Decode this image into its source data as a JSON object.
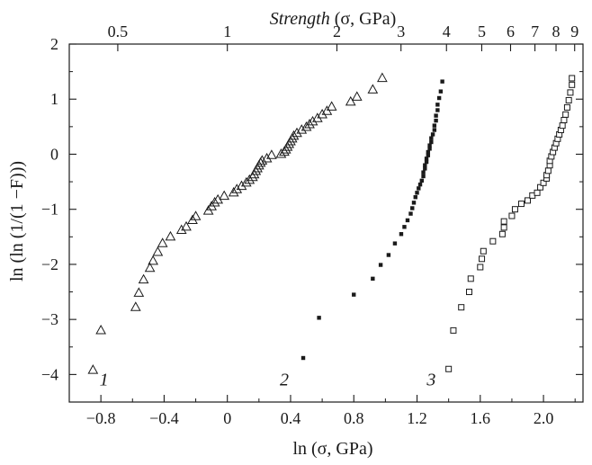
{
  "chart_data": {
    "type": "scatter",
    "title": "",
    "xlabel": "ln (σ, GPa)",
    "ylabel": "ln (ln (1/(1 −F)))",
    "top_xlabel": {
      "italic": "Strength",
      "rest": " (σ, GPa)"
    },
    "xlim": [
      -1.0,
      2.25
    ],
    "ylim": [
      -4.5,
      2.0
    ],
    "x_ticks": [
      "-0.8",
      "-0.4",
      "0",
      "0.4",
      "0.8",
      "1.2",
      "1.6",
      "2.0"
    ],
    "y_ticks": [
      "-4",
      "-3",
      "-2",
      "-1",
      "0",
      "1",
      "2"
    ],
    "top_ticks": [
      {
        "label": "0.5",
        "sigma": 0.5
      },
      {
        "label": "1",
        "sigma": 1
      },
      {
        "label": "2",
        "sigma": 2
      },
      {
        "label": "3",
        "sigma": 3
      },
      {
        "label": "4",
        "sigma": 4
      },
      {
        "label": "5",
        "sigma": 5
      },
      {
        "label": "6",
        "sigma": 6
      },
      {
        "label": "7",
        "sigma": 7
      },
      {
        "label": "8",
        "sigma": 8
      },
      {
        "label": "9",
        "sigma": 9
      }
    ],
    "grid": false,
    "series": [
      {
        "name": "1",
        "marker": "open-triangle",
        "label_at": [
          -0.78,
          -4.08
        ],
        "points": [
          [
            -0.85,
            -3.92
          ],
          [
            -0.8,
            -3.2
          ],
          [
            -0.58,
            -2.78
          ],
          [
            -0.56,
            -2.52
          ],
          [
            -0.53,
            -2.28
          ],
          [
            -0.49,
            -2.07
          ],
          [
            -0.47,
            -1.94
          ],
          [
            -0.44,
            -1.78
          ],
          [
            -0.41,
            -1.62
          ],
          [
            -0.36,
            -1.5
          ],
          [
            -0.29,
            -1.38
          ],
          [
            -0.26,
            -1.32
          ],
          [
            -0.22,
            -1.2
          ],
          [
            -0.2,
            -1.13
          ],
          [
            -0.12,
            -1.03
          ],
          [
            -0.1,
            -0.95
          ],
          [
            -0.08,
            -0.88
          ],
          [
            -0.06,
            -0.83
          ],
          [
            -0.02,
            -0.76
          ],
          [
            0.04,
            -0.7
          ],
          [
            0.06,
            -0.64
          ],
          [
            0.09,
            -0.58
          ],
          [
            0.12,
            -0.52
          ],
          [
            0.14,
            -0.47
          ],
          [
            0.16,
            -0.42
          ],
          [
            0.17,
            -0.37
          ],
          [
            0.18,
            -0.31
          ],
          [
            0.19,
            -0.26
          ],
          [
            0.2,
            -0.21
          ],
          [
            0.21,
            -0.16
          ],
          [
            0.22,
            -0.12
          ],
          [
            0.25,
            -0.08
          ],
          [
            0.28,
            -0.02
          ],
          [
            0.34,
            0.0
          ],
          [
            0.36,
            0.04
          ],
          [
            0.37,
            0.08
          ],
          [
            0.38,
            0.13
          ],
          [
            0.39,
            0.18
          ],
          [
            0.4,
            0.23
          ],
          [
            0.41,
            0.28
          ],
          [
            0.42,
            0.33
          ],
          [
            0.44,
            0.38
          ],
          [
            0.47,
            0.44
          ],
          [
            0.5,
            0.49
          ],
          [
            0.52,
            0.54
          ],
          [
            0.54,
            0.59
          ],
          [
            0.57,
            0.65
          ],
          [
            0.6,
            0.72
          ],
          [
            0.63,
            0.78
          ],
          [
            0.66,
            0.86
          ],
          [
            0.78,
            0.95
          ],
          [
            0.82,
            1.04
          ],
          [
            0.92,
            1.17
          ],
          [
            0.98,
            1.38
          ]
        ]
      },
      {
        "name": "2",
        "marker": "filled-square",
        "label_at": [
          0.36,
          -4.08
        ],
        "points": [
          [
            0.48,
            -3.7
          ],
          [
            0.58,
            -2.97
          ],
          [
            0.8,
            -2.55
          ],
          [
            0.92,
            -2.26
          ],
          [
            0.97,
            -2.01
          ],
          [
            1.02,
            -1.83
          ],
          [
            1.06,
            -1.62
          ],
          [
            1.1,
            -1.45
          ],
          [
            1.12,
            -1.32
          ],
          [
            1.14,
            -1.2
          ],
          [
            1.16,
            -1.08
          ],
          [
            1.17,
            -0.98
          ],
          [
            1.18,
            -0.88
          ],
          [
            1.19,
            -0.78
          ],
          [
            1.2,
            -0.7
          ],
          [
            1.21,
            -0.62
          ],
          [
            1.22,
            -0.55
          ],
          [
            1.23,
            -0.48
          ],
          [
            1.24,
            -0.4
          ],
          [
            1.24,
            -0.33
          ],
          [
            1.25,
            -0.26
          ],
          [
            1.25,
            -0.2
          ],
          [
            1.26,
            -0.14
          ],
          [
            1.26,
            -0.08
          ],
          [
            1.27,
            -0.02
          ],
          [
            1.27,
            0.04
          ],
          [
            1.28,
            0.1
          ],
          [
            1.28,
            0.16
          ],
          [
            1.29,
            0.22
          ],
          [
            1.29,
            0.29
          ],
          [
            1.3,
            0.36
          ],
          [
            1.31,
            0.44
          ],
          [
            1.31,
            0.52
          ],
          [
            1.32,
            0.61
          ],
          [
            1.32,
            0.7
          ],
          [
            1.33,
            0.8
          ],
          [
            1.33,
            0.9
          ],
          [
            1.34,
            1.02
          ],
          [
            1.35,
            1.14
          ],
          [
            1.36,
            1.32
          ]
        ]
      },
      {
        "name": "3",
        "marker": "open-square",
        "label_at": [
          1.29,
          -4.08
        ],
        "points": [
          [
            1.4,
            -3.9
          ],
          [
            1.43,
            -3.2
          ],
          [
            1.48,
            -2.78
          ],
          [
            1.53,
            -2.5
          ],
          [
            1.54,
            -2.26
          ],
          [
            1.6,
            -2.05
          ],
          [
            1.61,
            -1.9
          ],
          [
            1.62,
            -1.76
          ],
          [
            1.68,
            -1.58
          ],
          [
            1.74,
            -1.45
          ],
          [
            1.75,
            -1.33
          ],
          [
            1.75,
            -1.22
          ],
          [
            1.8,
            -1.12
          ],
          [
            1.82,
            -1.0
          ],
          [
            1.86,
            -0.9
          ],
          [
            1.9,
            -0.84
          ],
          [
            1.93,
            -0.75
          ],
          [
            1.96,
            -0.7
          ],
          [
            1.98,
            -0.6
          ],
          [
            2.0,
            -0.52
          ],
          [
            2.02,
            -0.44
          ],
          [
            2.02,
            -0.38
          ],
          [
            2.03,
            -0.3
          ],
          [
            2.04,
            -0.2
          ],
          [
            2.04,
            -0.12
          ],
          [
            2.05,
            -0.04
          ],
          [
            2.06,
            0.04
          ],
          [
            2.07,
            0.12
          ],
          [
            2.08,
            0.2
          ],
          [
            2.09,
            0.28
          ],
          [
            2.1,
            0.36
          ],
          [
            2.11,
            0.44
          ],
          [
            2.12,
            0.52
          ],
          [
            2.13,
            0.62
          ],
          [
            2.14,
            0.72
          ],
          [
            2.15,
            0.85
          ],
          [
            2.16,
            0.98
          ],
          [
            2.17,
            1.12
          ],
          [
            2.18,
            1.26
          ],
          [
            2.18,
            1.38
          ]
        ]
      }
    ]
  }
}
